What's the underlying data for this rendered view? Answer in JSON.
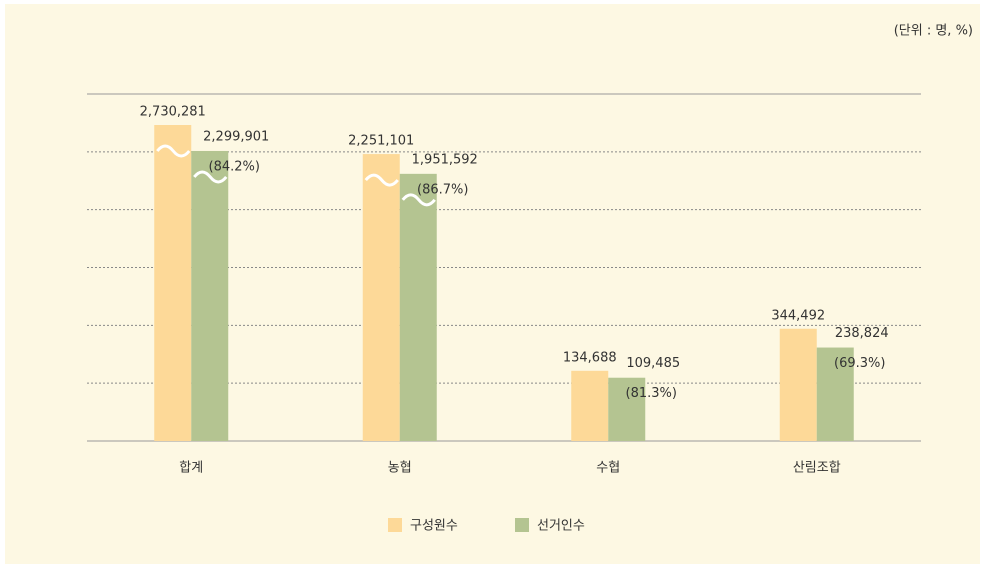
{
  "chart_data": {
    "type": "bar",
    "unit_note": "(단위 : 명, %)",
    "categories": [
      "합계",
      "농협",
      "수협",
      "산림조합"
    ],
    "series": [
      {
        "name": "구성원수",
        "color": "#fdd998",
        "values": [
          2730281,
          2251101,
          134688,
          344492
        ],
        "value_labels": [
          "2,730,281",
          "2,251,101",
          "134,688",
          "344,492"
        ]
      },
      {
        "name": "선거인수",
        "color": "#b4c491",
        "values": [
          2299901,
          1951592,
          109485,
          238824
        ],
        "value_labels": [
          "2,299,901",
          "1,951,592",
          "109,485",
          "238,824"
        ],
        "rate_labels": [
          "(84.2%)",
          "(86.7%)",
          "(81.3%)",
          "(69.3%)"
        ]
      }
    ],
    "axis_break": true
  }
}
